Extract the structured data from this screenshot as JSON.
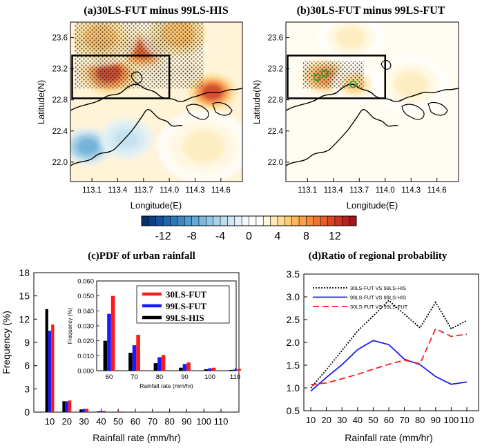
{
  "chart_data": [
    {
      "id": "a",
      "type": "heatmap",
      "title": "(a)30LS-FUT minus 99LS-HIS",
      "xlabel": "Longitude(E)",
      "ylabel": "Latitude(N)",
      "xlim": [
        112.85,
        114.85
      ],
      "ylim": [
        21.75,
        23.8
      ],
      "xticks": [
        "113.1",
        "113.4",
        "113.7",
        "114.0",
        "114.3",
        "114.6"
      ],
      "xtick_values": [
        113.1,
        113.4,
        113.7,
        114.0,
        114.3,
        114.6
      ],
      "yticks": [
        "22.0",
        "22.4",
        "22.8",
        "23.2",
        "23.6"
      ],
      "ytick_values": [
        22.0,
        22.4,
        22.8,
        23.2,
        23.6
      ],
      "box": {
        "lon": [
          112.87,
          114.0
        ],
        "lat": [
          22.82,
          23.37
        ]
      },
      "blobs": [
        {
          "lon": 113.3,
          "lat": 23.15,
          "v": 12,
          "r": 0.3
        },
        {
          "lon": 113.7,
          "lat": 23.45,
          "v": 11,
          "r": 0.3
        },
        {
          "lon": 114.5,
          "lat": 22.9,
          "v": 12,
          "r": 0.25
        },
        {
          "lon": 114.1,
          "lat": 23.65,
          "v": 6,
          "r": 0.4
        },
        {
          "lon": 113.05,
          "lat": 22.2,
          "v": -8,
          "r": 0.25
        },
        {
          "lon": 113.5,
          "lat": 22.3,
          "v": -4,
          "r": 0.28
        },
        {
          "lon": 113.2,
          "lat": 23.6,
          "v": 6,
          "r": 0.4
        },
        {
          "lon": 114.4,
          "lat": 22.2,
          "v": 3,
          "r": 0.5
        }
      ],
      "hatch": [
        {
          "lon": [
            112.9,
            114.4
          ],
          "lat": [
            22.95,
            23.8
          ]
        }
      ]
    },
    {
      "id": "b",
      "type": "heatmap",
      "title": "(b)30LS-FUT minus 99LS-FUT",
      "xlabel": "Longitude(E)",
      "ylabel": "Latitude(N)",
      "xlim": [
        112.85,
        114.85
      ],
      "ylim": [
        21.75,
        23.8
      ],
      "xticks": [
        "113.1",
        "113.4",
        "113.7",
        "114.0",
        "114.3",
        "114.6"
      ],
      "xtick_values": [
        113.1,
        113.4,
        113.7,
        114.0,
        114.3,
        114.6
      ],
      "yticks": [
        "22.0",
        "22.4",
        "22.8",
        "23.2",
        "23.6"
      ],
      "ytick_values": [
        22.0,
        22.4,
        22.8,
        23.2,
        23.6
      ],
      "box": {
        "lon": [
          112.87,
          114.0
        ],
        "lat": [
          22.82,
          23.37
        ]
      },
      "blobs": [
        {
          "lon": 113.3,
          "lat": 23.1,
          "v": 8,
          "r": 0.28
        },
        {
          "lon": 113.65,
          "lat": 23.0,
          "v": 5,
          "r": 0.25
        },
        {
          "lon": 114.3,
          "lat": 23.0,
          "v": 3,
          "r": 0.4
        },
        {
          "lon": 113.6,
          "lat": 23.6,
          "v": 3,
          "r": 0.35
        }
      ],
      "hatch": [
        {
          "lon": [
            113.05,
            113.75
          ],
          "lat": [
            22.95,
            23.3
          ]
        }
      ],
      "circles": [
        {
          "lon": 113.21,
          "lat": 23.09
        },
        {
          "lon": 113.3,
          "lat": 23.14
        },
        {
          "lon": 113.63,
          "lat": 23.0
        }
      ]
    },
    {
      "id": "c",
      "type": "bar",
      "title": "(c)PDF of urban rainfall",
      "xlabel": "Rainfall rate (mm/hr)",
      "ylabel": "Frequency (%)",
      "categories": [
        "10",
        "20",
        "30",
        "40",
        "50",
        "60",
        "70",
        "80",
        "90",
        "100",
        "110"
      ],
      "ylim": [
        0,
        18
      ],
      "yticks": [
        "0",
        "3",
        "6",
        "9",
        "12",
        "15",
        "18"
      ],
      "ytick_values": [
        0,
        3,
        6,
        9,
        12,
        15,
        18
      ],
      "series": [
        {
          "name": "99LS-HIS",
          "color": "#000000",
          "values": [
            13.3,
            1.4,
            0.35,
            0.1,
            0.04,
            0.02,
            0.012,
            0.005,
            0.002,
            0.001,
            0.0005
          ]
        },
        {
          "name": "99LS-FUT",
          "color": "#1a1aff",
          "values": [
            10.5,
            1.4,
            0.4,
            0.14,
            0.06,
            0.038,
            0.017,
            0.009,
            0.0045,
            0.0015,
            0.0008
          ]
        },
        {
          "name": "30LS-FUT",
          "color": "#ff1a1a",
          "values": [
            11.3,
            1.5,
            0.45,
            0.18,
            0.09,
            0.05,
            0.024,
            0.0105,
            0.0055,
            0.002,
            0.0012
          ]
        }
      ],
      "inset": {
        "categories": [
          "60",
          "70",
          "80",
          "90",
          "100",
          "110"
        ],
        "xlabel": "Rainfall rate (mm/hr)",
        "ylabel": "Frequency (%)",
        "ylim": [
          0,
          0.06
        ],
        "yticks": [
          "0.000",
          "0.010",
          "0.020",
          "0.030",
          "0.040",
          "0.050",
          "0.060"
        ],
        "ytick_values": [
          0,
          0.01,
          0.02,
          0.03,
          0.04,
          0.05,
          0.06
        ],
        "legend": [
          "30LS-FUT",
          "99LS-FUT",
          "99LS-HIS"
        ]
      }
    },
    {
      "id": "d",
      "type": "line",
      "title": "(d)Ratio of regional probability",
      "xlabel": "Rainfall rate (mm/hr)",
      "categories": [
        "10",
        "20",
        "30",
        "40",
        "50",
        "60",
        "70",
        "80",
        "90",
        "100",
        "110"
      ],
      "ylim": [
        0.5,
        3.5
      ],
      "yticks": [
        "0.5",
        "1.0",
        "1.5",
        "2.0",
        "2.5",
        "3.0",
        "3.5"
      ],
      "ytick_values": [
        0.5,
        1.0,
        1.5,
        2.0,
        2.5,
        3.0,
        3.5
      ],
      "series": [
        {
          "name": "30LS-FUT VS 99LS-HIS",
          "color": "#000000",
          "dash": "2,2",
          "values": [
            1.0,
            1.4,
            1.82,
            2.25,
            2.58,
            2.92,
            2.62,
            2.32,
            2.88,
            2.3,
            2.48
          ]
        },
        {
          "name": "99LS-FUT VS 99LS-HIS",
          "color": "#1a1aff",
          "dash": "",
          "values": [
            0.93,
            1.23,
            1.51,
            1.84,
            2.04,
            1.95,
            1.63,
            1.51,
            1.25,
            1.08,
            1.13
          ]
        },
        {
          "name": "30LS-FUT VS 99LS-FUT",
          "color": "#ff1a1a",
          "dash": "9,5",
          "values": [
            1.07,
            1.11,
            1.2,
            1.3,
            1.41,
            1.52,
            1.61,
            1.53,
            2.3,
            2.13,
            2.18
          ]
        }
      ]
    }
  ],
  "colorbar": {
    "labels": [
      "-12",
      "-8",
      "-4",
      "0",
      "4",
      "8",
      "12"
    ],
    "label_values": [
      -12,
      -8,
      -4,
      0,
      4,
      8,
      12
    ],
    "levels": [
      -15,
      -14,
      -13,
      -12,
      -11,
      -10,
      -9,
      -8,
      -7,
      -6,
      -5,
      -4,
      -3,
      -2,
      -1,
      0,
      1,
      2,
      3,
      4,
      5,
      6,
      7,
      8,
      9,
      10,
      11,
      12,
      13,
      14,
      15
    ],
    "colors": [
      "#08306b",
      "#0d3f85",
      "#15519d",
      "#2166ac",
      "#2f77b8",
      "#3f88c3",
      "#529bcc",
      "#67aad4",
      "#7cb8dc",
      "#92c6e3",
      "#a9d3ea",
      "#bedff0",
      "#d1e9f5",
      "#e2f1f8",
      "#f0f8fb",
      "#ffffff",
      "#ffffff",
      "#fff6dc",
      "#feeab8",
      "#fddc94",
      "#fdcb75",
      "#fcb75c",
      "#f9a249",
      "#f58b3b",
      "#ee7431",
      "#e55d2a",
      "#d84626",
      "#c93323",
      "#b72420",
      "#a2171d"
    ]
  }
}
